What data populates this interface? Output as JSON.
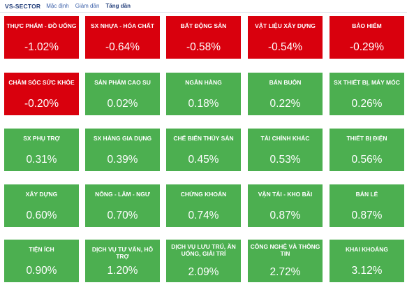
{
  "header": {
    "brand": "VS-SECTOR",
    "tabs": [
      {
        "label": "Mặc định"
      },
      {
        "label": "Giảm dần"
      },
      {
        "label": "Tăng dần"
      }
    ]
  },
  "colors": {
    "negative": "#d9000d",
    "positive": "#4caf50"
  },
  "tiles": [
    {
      "name": "THỰC PHẨM - ĐỒ UỐNG",
      "value": "-1.02%"
    },
    {
      "name": "SX NHỰA - HÓA CHẤT",
      "value": "-0.64%"
    },
    {
      "name": "BẤT ĐỘNG SẢN",
      "value": "-0.58%"
    },
    {
      "name": "VẬT LIỆU XÂY DỰNG",
      "value": "-0.54%"
    },
    {
      "name": "BẢO HIỂM",
      "value": "-0.29%"
    },
    {
      "name": "CHĂM SÓC SỨC KHỎE",
      "value": "-0.20%"
    },
    {
      "name": "SẢN PHẨM CAO SU",
      "value": "0.02%"
    },
    {
      "name": "NGÂN HÀNG",
      "value": "0.18%"
    },
    {
      "name": "BÁN BUÔN",
      "value": "0.22%"
    },
    {
      "name": "SX THIẾT BỊ, MÁY MÓC",
      "value": "0.26%"
    },
    {
      "name": "SX PHỤ TRỢ",
      "value": "0.31%"
    },
    {
      "name": "SX HÀNG GIA DỤNG",
      "value": "0.39%"
    },
    {
      "name": "CHẾ BIẾN THỦY SẢN",
      "value": "0.45%"
    },
    {
      "name": "TÀI CHÍNH KHÁC",
      "value": "0.53%"
    },
    {
      "name": "THIẾT BỊ ĐIỆN",
      "value": "0.56%"
    },
    {
      "name": "XÂY DỰNG",
      "value": "0.60%"
    },
    {
      "name": "NÔNG - LÂM - NGƯ",
      "value": "0.70%"
    },
    {
      "name": "CHỨNG KHOÁN",
      "value": "0.74%"
    },
    {
      "name": "VẬN TẢI - KHO BÃI",
      "value": "0.87%"
    },
    {
      "name": "BÁN LẺ",
      "value": "0.87%"
    },
    {
      "name": "TIỆN ÍCH",
      "value": "0.90%"
    },
    {
      "name": "DỊCH VỤ TƯ VẤN, HỖ TRỢ",
      "value": "1.20%"
    },
    {
      "name": "DỊCH VỤ LƯU TRÚ, ĂN UỐNG, GIẢI TRÍ",
      "value": "2.09%"
    },
    {
      "name": "CÔNG NGHỆ VÀ THÔNG TIN",
      "value": "2.72%"
    },
    {
      "name": "KHAI KHOÁNG",
      "value": "3.12%"
    }
  ]
}
